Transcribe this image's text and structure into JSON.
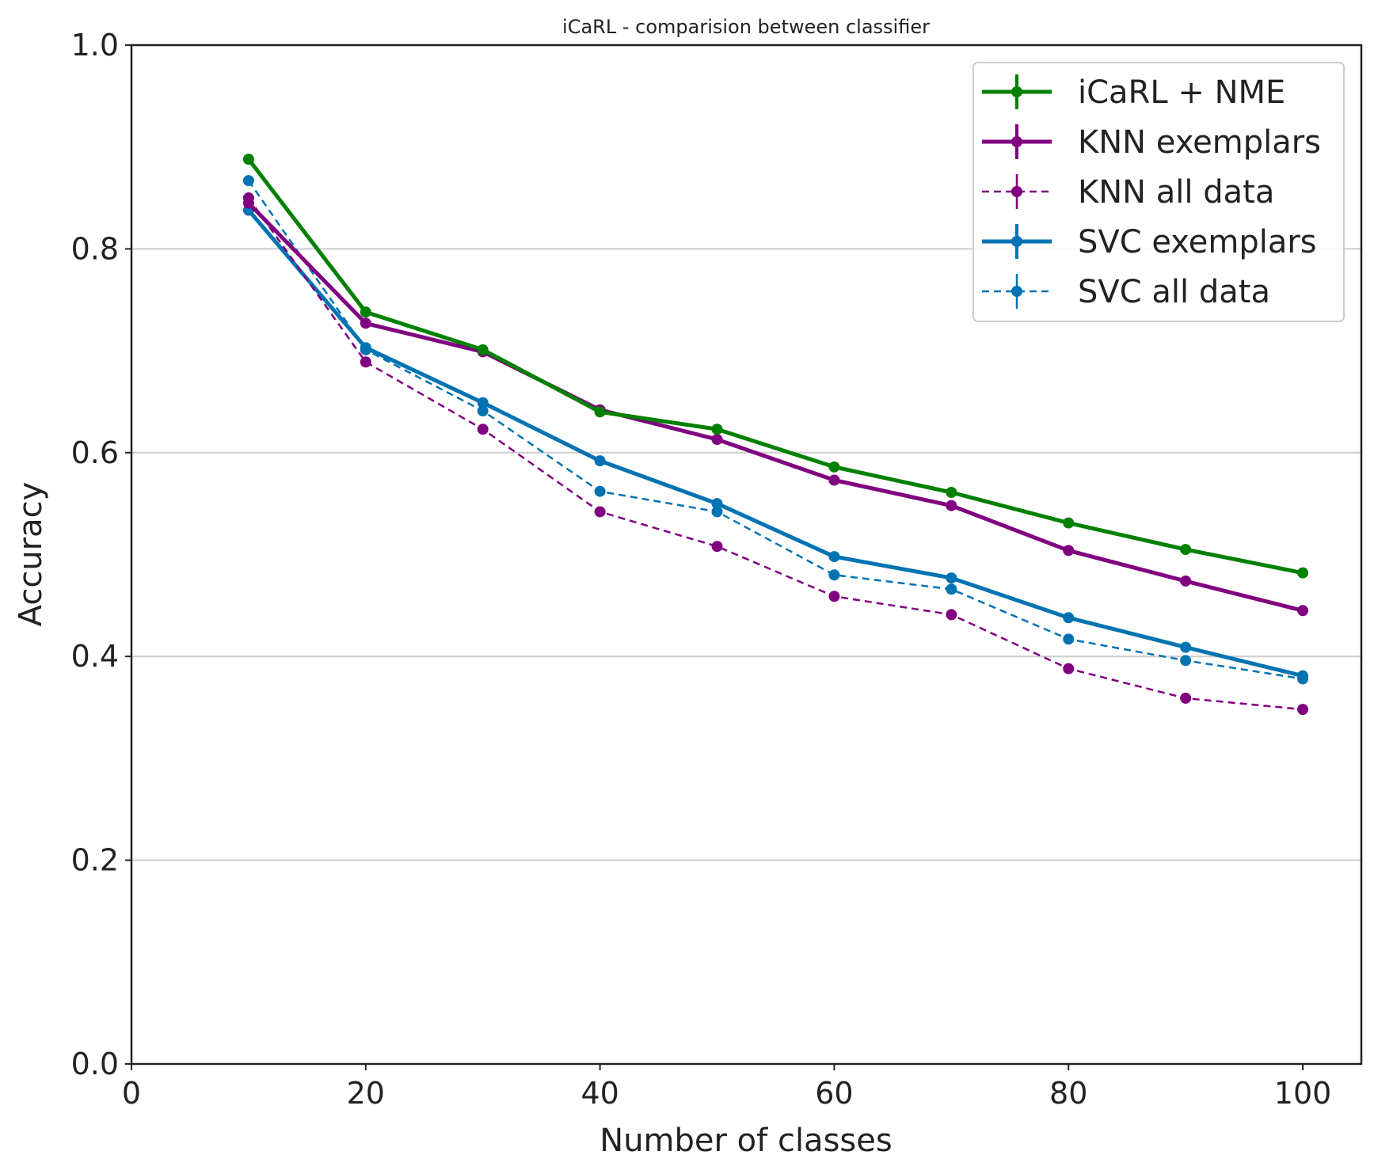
{
  "chart_data": {
    "type": "line",
    "title": "iCaRL - comparision between classifier",
    "xlabel": "Number of classes",
    "ylabel": "Accuracy",
    "xlim": [
      0,
      105
    ],
    "ylim": [
      0.0,
      1.0
    ],
    "xticks": [
      0,
      20,
      40,
      60,
      80,
      100
    ],
    "yticks": [
      0.0,
      0.2,
      0.4,
      0.6,
      0.8,
      1.0
    ],
    "x": [
      10,
      20,
      30,
      40,
      50,
      60,
      70,
      80,
      90,
      100
    ],
    "grid": "horizontal",
    "legend_position": "top-right",
    "series": [
      {
        "name": "iCaRL + NME",
        "color": "#008000",
        "style": "solid",
        "values": [
          0.888,
          0.738,
          0.701,
          0.64,
          0.623,
          0.586,
          0.561,
          0.531,
          0.505,
          0.482
        ]
      },
      {
        "name": "KNN exemplars",
        "color": "#800080",
        "style": "solid",
        "values": [
          0.845,
          0.727,
          0.699,
          0.642,
          0.613,
          0.573,
          0.548,
          0.504,
          0.474,
          0.445
        ]
      },
      {
        "name": "KNN all data",
        "color": "#800080",
        "style": "dashed",
        "values": [
          0.85,
          0.689,
          0.623,
          0.542,
          0.508,
          0.459,
          0.441,
          0.388,
          0.359,
          0.348
        ]
      },
      {
        "name": "SVC exemplars",
        "color": "#0173b2",
        "style": "solid",
        "values": [
          0.838,
          0.703,
          0.649,
          0.592,
          0.55,
          0.498,
          0.477,
          0.438,
          0.409,
          0.381
        ]
      },
      {
        "name": "SVC all data",
        "color": "#0173b2",
        "style": "dashed",
        "values": [
          0.867,
          0.701,
          0.641,
          0.562,
          0.542,
          0.48,
          0.466,
          0.417,
          0.396,
          0.378
        ]
      }
    ]
  }
}
